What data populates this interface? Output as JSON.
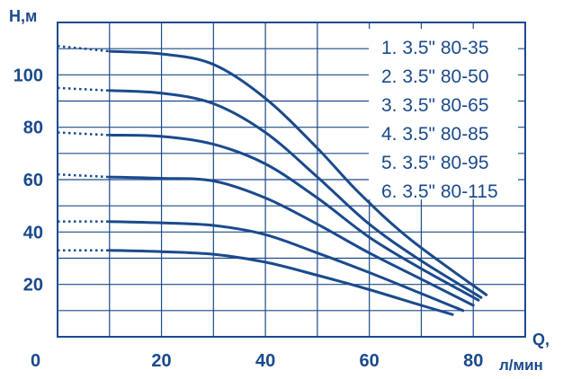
{
  "chart_data": {
    "type": "line",
    "ylabel": "H,м",
    "xlabel_q": "Q,",
    "xlabel_unit": "л/мин",
    "origin_label": "0",
    "xlim": [
      0,
      90
    ],
    "ylim": [
      0,
      120
    ],
    "x_ticks": [
      "20",
      "40",
      "60",
      "80"
    ],
    "x_tick_values": [
      20,
      40,
      60,
      80
    ],
    "y_ticks": [
      "20",
      "40",
      "60",
      "80",
      "100"
    ],
    "y_tick_values": [
      20,
      40,
      60,
      80,
      100
    ],
    "grid": true,
    "legend_placement": "top-right",
    "color": "#1a4a8c",
    "series": [
      {
        "name": "1. 3.5\" 80-35",
        "dotted": [
          [
            0,
            33
          ],
          [
            10,
            33
          ]
        ],
        "points": [
          [
            10,
            33
          ],
          [
            20,
            32.5
          ],
          [
            30,
            31.5
          ],
          [
            40,
            28.5
          ],
          [
            50,
            23.5
          ],
          [
            60,
            18
          ],
          [
            70,
            12
          ],
          [
            76,
            8.5
          ]
        ]
      },
      {
        "name": "2. 3.5\" 80-50",
        "dotted": [
          [
            0,
            44
          ],
          [
            10,
            44
          ]
        ],
        "points": [
          [
            10,
            44
          ],
          [
            20,
            43.5
          ],
          [
            30,
            42.5
          ],
          [
            40,
            39
          ],
          [
            50,
            32
          ],
          [
            60,
            24.5
          ],
          [
            70,
            16.5
          ],
          [
            78,
            10
          ]
        ]
      },
      {
        "name": "3. 3.5\" 80-65",
        "dotted": [
          [
            0,
            62
          ],
          [
            10,
            61
          ]
        ],
        "points": [
          [
            10,
            61
          ],
          [
            20,
            60.5
          ],
          [
            30,
            59.5
          ],
          [
            40,
            53
          ],
          [
            50,
            43
          ],
          [
            60,
            32
          ],
          [
            70,
            22
          ],
          [
            80,
            12
          ]
        ]
      },
      {
        "name": "4. 3.5\" 80-85",
        "dotted": [
          [
            0,
            78
          ],
          [
            10,
            77
          ]
        ],
        "points": [
          [
            10,
            77
          ],
          [
            20,
            76.5
          ],
          [
            30,
            73.5
          ],
          [
            40,
            66
          ],
          [
            50,
            53
          ],
          [
            60,
            38
          ],
          [
            70,
            26
          ],
          [
            81,
            14
          ]
        ]
      },
      {
        "name": "5. 3.5\" 80-95",
        "dotted": [
          [
            0,
            95
          ],
          [
            10,
            94
          ]
        ],
        "points": [
          [
            10,
            94
          ],
          [
            20,
            93
          ],
          [
            30,
            89
          ],
          [
            40,
            78
          ],
          [
            50,
            61
          ],
          [
            60,
            43
          ],
          [
            70,
            29
          ],
          [
            81.5,
            15
          ]
        ]
      },
      {
        "name": "6. 3.5\" 80-115",
        "dotted": [
          [
            0,
            111
          ],
          [
            10,
            109
          ]
        ],
        "points": [
          [
            10,
            109
          ],
          [
            20,
            108
          ],
          [
            30,
            104
          ],
          [
            40,
            91
          ],
          [
            50,
            72
          ],
          [
            58,
            55
          ],
          [
            68,
            37
          ],
          [
            82.5,
            16
          ]
        ]
      }
    ]
  }
}
